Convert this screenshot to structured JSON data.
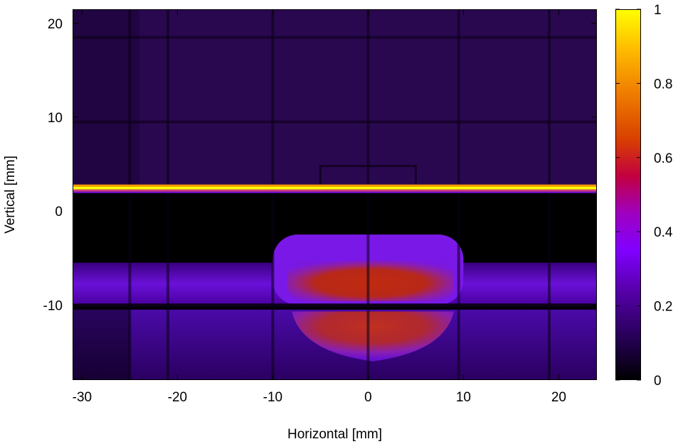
{
  "chart_data": {
    "type": "heatmap",
    "title": "",
    "xlabel": "Horizontal [mm]",
    "ylabel": "Vertical [mm]",
    "xlim": [
      -31,
      24
    ],
    "ylim": [
      -18,
      21.5
    ],
    "x_ticks": [
      -30,
      -20,
      -10,
      0,
      10,
      20
    ],
    "y_ticks": [
      -10,
      0,
      10,
      20
    ],
    "colorbar": {
      "range": [
        0,
        1
      ],
      "ticks": [
        0,
        0.2,
        0.4,
        0.6,
        0.8,
        1
      ],
      "tick_labels": [
        "0",
        "0.2",
        "0.4",
        "0.6",
        "0.8",
        "1"
      ],
      "colormap": [
        "#000000",
        "#3a0070",
        "#8000ff",
        "#c00050",
        "#e05000",
        "#ff9000",
        "#ffff00"
      ]
    },
    "features": {
      "background_upper": 0.08,
      "background_below_line": 0.0,
      "bright_line": {
        "y": 2.3,
        "value": 1.0
      },
      "wide_band": {
        "y_range": [
          -10,
          -5.5
        ],
        "x_range": [
          -31,
          24
        ],
        "value": 0.22
      },
      "core_upper": {
        "x_range": [
          -10,
          10
        ],
        "y_range": [
          -10,
          -2.5
        ],
        "value": 0.55
      },
      "core_lower": {
        "x_range": [
          -10,
          10
        ],
        "y_range": [
          -16,
          -10.5
        ],
        "value": 0.5
      },
      "lower_halo": {
        "y_range": [
          -18,
          -10.5
        ],
        "value": 0.15
      },
      "grid_lines_x": [
        -25,
        -21,
        -10,
        0,
        9.5,
        19
      ],
      "grid_lines_y": [
        -10,
        9.5,
        18.5
      ]
    }
  }
}
